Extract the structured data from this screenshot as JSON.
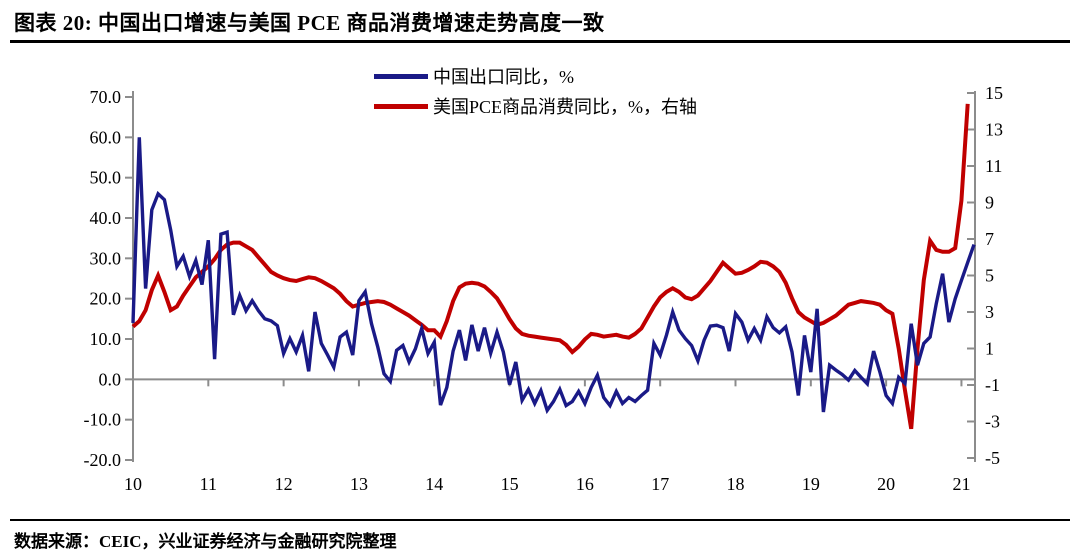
{
  "title": "图表 20:  中国出口增速与美国 PCE 商品消费增速走势高度一致",
  "footer": "数据来源：CEIC，兴业证券经济与金融研究院整理",
  "legend": [
    {
      "label": "中国出口同比，%",
      "color": "#1a1a87"
    },
    {
      "label": "美国PCE商品消费同比，%，右轴",
      "color": "#c00000"
    }
  ],
  "chart_data": {
    "type": "line",
    "title": "中国出口增速与美国PCE商品消费增速走势高度一致",
    "x_start": "2010-01",
    "x_freq": "monthly",
    "x_labels": [
      "10",
      "11",
      "12",
      "13",
      "14",
      "15",
      "16",
      "17",
      "18",
      "19",
      "20",
      "21"
    ],
    "left_axis": {
      "label": "中国出口同比，%",
      "ticks": [
        70,
        60,
        50,
        40,
        30,
        20,
        10,
        0,
        -10,
        -20
      ],
      "range": [
        -20,
        70
      ],
      "decimals": 1
    },
    "right_axis": {
      "label": "美国PCE商品消费同比，%",
      "ticks": [
        15,
        13,
        11,
        9,
        7,
        5,
        3,
        1,
        -1,
        -3,
        -5
      ],
      "range": [
        -5,
        15
      ],
      "decimals": 0
    },
    "axis_color": "#8c8c8c",
    "series": [
      {
        "name": "中国出口同比，%",
        "axis": "left",
        "color": "#1a1a87",
        "width": 3.4,
        "values": [
          14,
          60,
          22.5,
          42,
          46,
          44.5,
          37,
          28,
          30.5,
          25.5,
          29.5,
          23.5,
          34.5,
          5,
          36,
          36.5,
          16,
          20.8,
          17,
          19.5,
          17,
          15,
          14.5,
          13.3,
          6.4,
          10.1,
          6.8,
          10.9,
          2,
          16.7,
          8.9,
          6,
          3,
          10.5,
          11.7,
          6,
          19.5,
          21.7,
          13.8,
          8,
          1.4,
          -0.5,
          7.2,
          8.4,
          4.3,
          7.6,
          12.6,
          6.4,
          9.2,
          -6.4,
          -2,
          7,
          12.2,
          4.7,
          13.5,
          7,
          12.8,
          6.5,
          11.7,
          6.8,
          -1.3,
          4.3,
          -5.2,
          -2.5,
          -6,
          -2.8,
          -7.7,
          -5.5,
          -2.5,
          -6.5,
          -5.5,
          -3,
          -6,
          -2,
          1,
          -4.5,
          -6.5,
          -3,
          -6,
          -4.5,
          -5.5,
          -4,
          -2.7,
          8.9,
          6,
          11,
          16.7,
          12.2,
          10.1,
          8.4,
          4.6,
          9.7,
          13.2,
          13.4,
          12.8,
          7,
          16.3,
          14.2,
          9.7,
          12.6,
          9.7,
          15.5,
          12.8,
          11.5,
          13,
          6.8,
          -4,
          10.9,
          1.8,
          17.5,
          -8.1,
          3.5,
          2.3,
          1.2,
          -0.2,
          2.2,
          0.5,
          -1.1,
          7,
          1.8,
          -4,
          -6,
          0.5,
          -1,
          13.8,
          3.5,
          8.9,
          10.5,
          18.8,
          26.2,
          14.2,
          20,
          24.5,
          29,
          33.4
        ]
      },
      {
        "name": "美国PCE商品消费同比，%，右轴",
        "axis": "right",
        "color": "#c00000",
        "width": 4,
        "values": [
          2.2,
          2.5,
          3.1,
          4.2,
          5,
          4.1,
          3.1,
          3.3,
          3.9,
          4.4,
          4.9,
          5.2,
          5.5,
          5.9,
          6.4,
          6.7,
          6.8,
          6.8,
          6.6,
          6.4,
          6,
          5.6,
          5.2,
          5,
          4.85,
          4.75,
          4.7,
          4.8,
          4.9,
          4.85,
          4.7,
          4.5,
          4.3,
          4,
          3.6,
          3.3,
          3.4,
          3.5,
          3.55,
          3.6,
          3.55,
          3.4,
          3.2,
          3,
          2.8,
          2.55,
          2.3,
          2,
          2,
          1.65,
          2.5,
          3.6,
          4.35,
          4.55,
          4.6,
          4.55,
          4.4,
          4.1,
          3.75,
          3.2,
          2.6,
          2.1,
          1.8,
          1.7,
          1.65,
          1.6,
          1.55,
          1.5,
          1.45,
          1.2,
          0.8,
          1.1,
          1.5,
          1.8,
          1.75,
          1.65,
          1.7,
          1.75,
          1.65,
          1.6,
          1.8,
          2.1,
          2.7,
          3.3,
          3.8,
          4.1,
          4.3,
          4.1,
          3.8,
          3.7,
          3.9,
          4.3,
          4.7,
          5.2,
          5.7,
          5.4,
          5.1,
          5.15,
          5.3,
          5.5,
          5.75,
          5.7,
          5.5,
          5.2,
          4.6,
          3.75,
          3,
          2.7,
          2.5,
          2.3,
          2.4,
          2.6,
          2.8,
          3.1,
          3.4,
          3.5,
          3.6,
          3.55,
          3.5,
          3.4,
          3.1,
          2.9,
          1,
          -1.3,
          -3.4,
          1,
          4.75,
          6.9,
          6.4,
          6.3,
          6.3,
          6.5,
          9.1,
          14.4,
          null
        ]
      }
    ]
  }
}
